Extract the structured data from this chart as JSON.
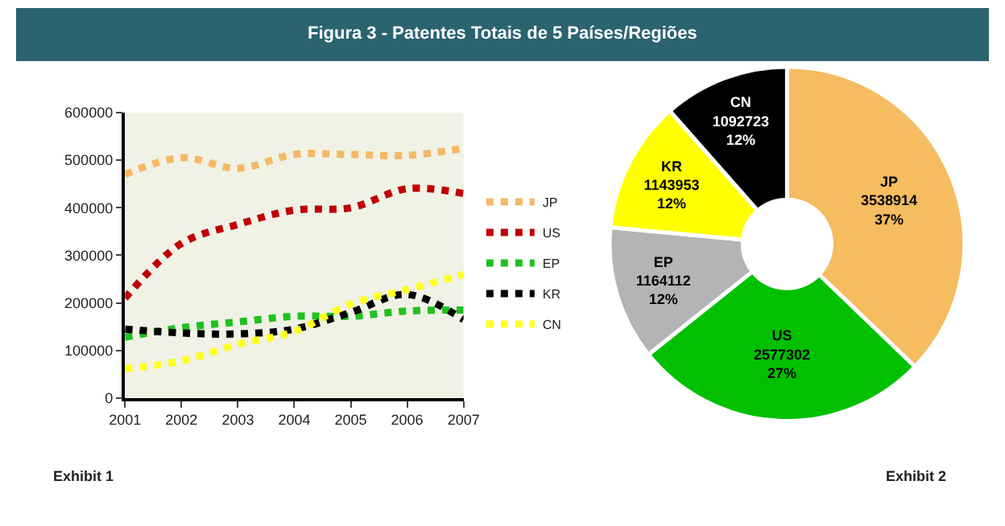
{
  "chart_data": [
    {
      "type": "line",
      "title": "Figura 3 - Patentes Totais de 5 Países/Regiões",
      "x": [
        2001,
        2002,
        2003,
        2004,
        2005,
        2006,
        2007
      ],
      "series": [
        {
          "name": "JP",
          "color": "#f5b865",
          "values": [
            470000,
            505000,
            483000,
            512000,
            512000,
            510000,
            525000
          ]
        },
        {
          "name": "US",
          "color": "#c00000",
          "values": [
            210000,
            325000,
            365000,
            395000,
            400000,
            440000,
            430000
          ]
        },
        {
          "name": "EP",
          "color": "#20c020",
          "values": [
            128000,
            148000,
            160000,
            172000,
            172000,
            183000,
            185000
          ]
        },
        {
          "name": "KR",
          "color": "#000000",
          "values": [
            145000,
            137000,
            135000,
            145000,
            180000,
            218000,
            165000
          ]
        },
        {
          "name": "CN",
          "color": "#ffff20",
          "values": [
            62000,
            78000,
            113000,
            140000,
            198000,
            228000,
            260000
          ]
        }
      ],
      "xlim": [
        2001,
        2007
      ],
      "xticks": [
        2001,
        2002,
        2003,
        2004,
        2005,
        2006,
        2007
      ],
      "ylim": [
        0,
        600000
      ],
      "yticks": [
        0,
        100000,
        200000,
        300000,
        400000,
        500000,
        600000
      ],
      "grid": false,
      "legend": "right",
      "line_style": "dotted",
      "marker": "none",
      "annotations": [
        "Exhibit 1"
      ]
    },
    {
      "type": "donut",
      "categories": [
        "JP",
        "US",
        "EP",
        "KR",
        "CN"
      ],
      "values": [
        3538914,
        2577302,
        1164112,
        1143953,
        1092723
      ],
      "colors": [
        "#f5bc60",
        "#00c000",
        "#b4b4b4",
        "#ffff00",
        "#000000"
      ],
      "value_labels": [
        "3538914\n37%",
        "2577302\n27%",
        "1164112\n12%",
        "1143953\n12%",
        "1092723\n12%"
      ],
      "annotations": [
        "Exhibit 2"
      ]
    }
  ]
}
